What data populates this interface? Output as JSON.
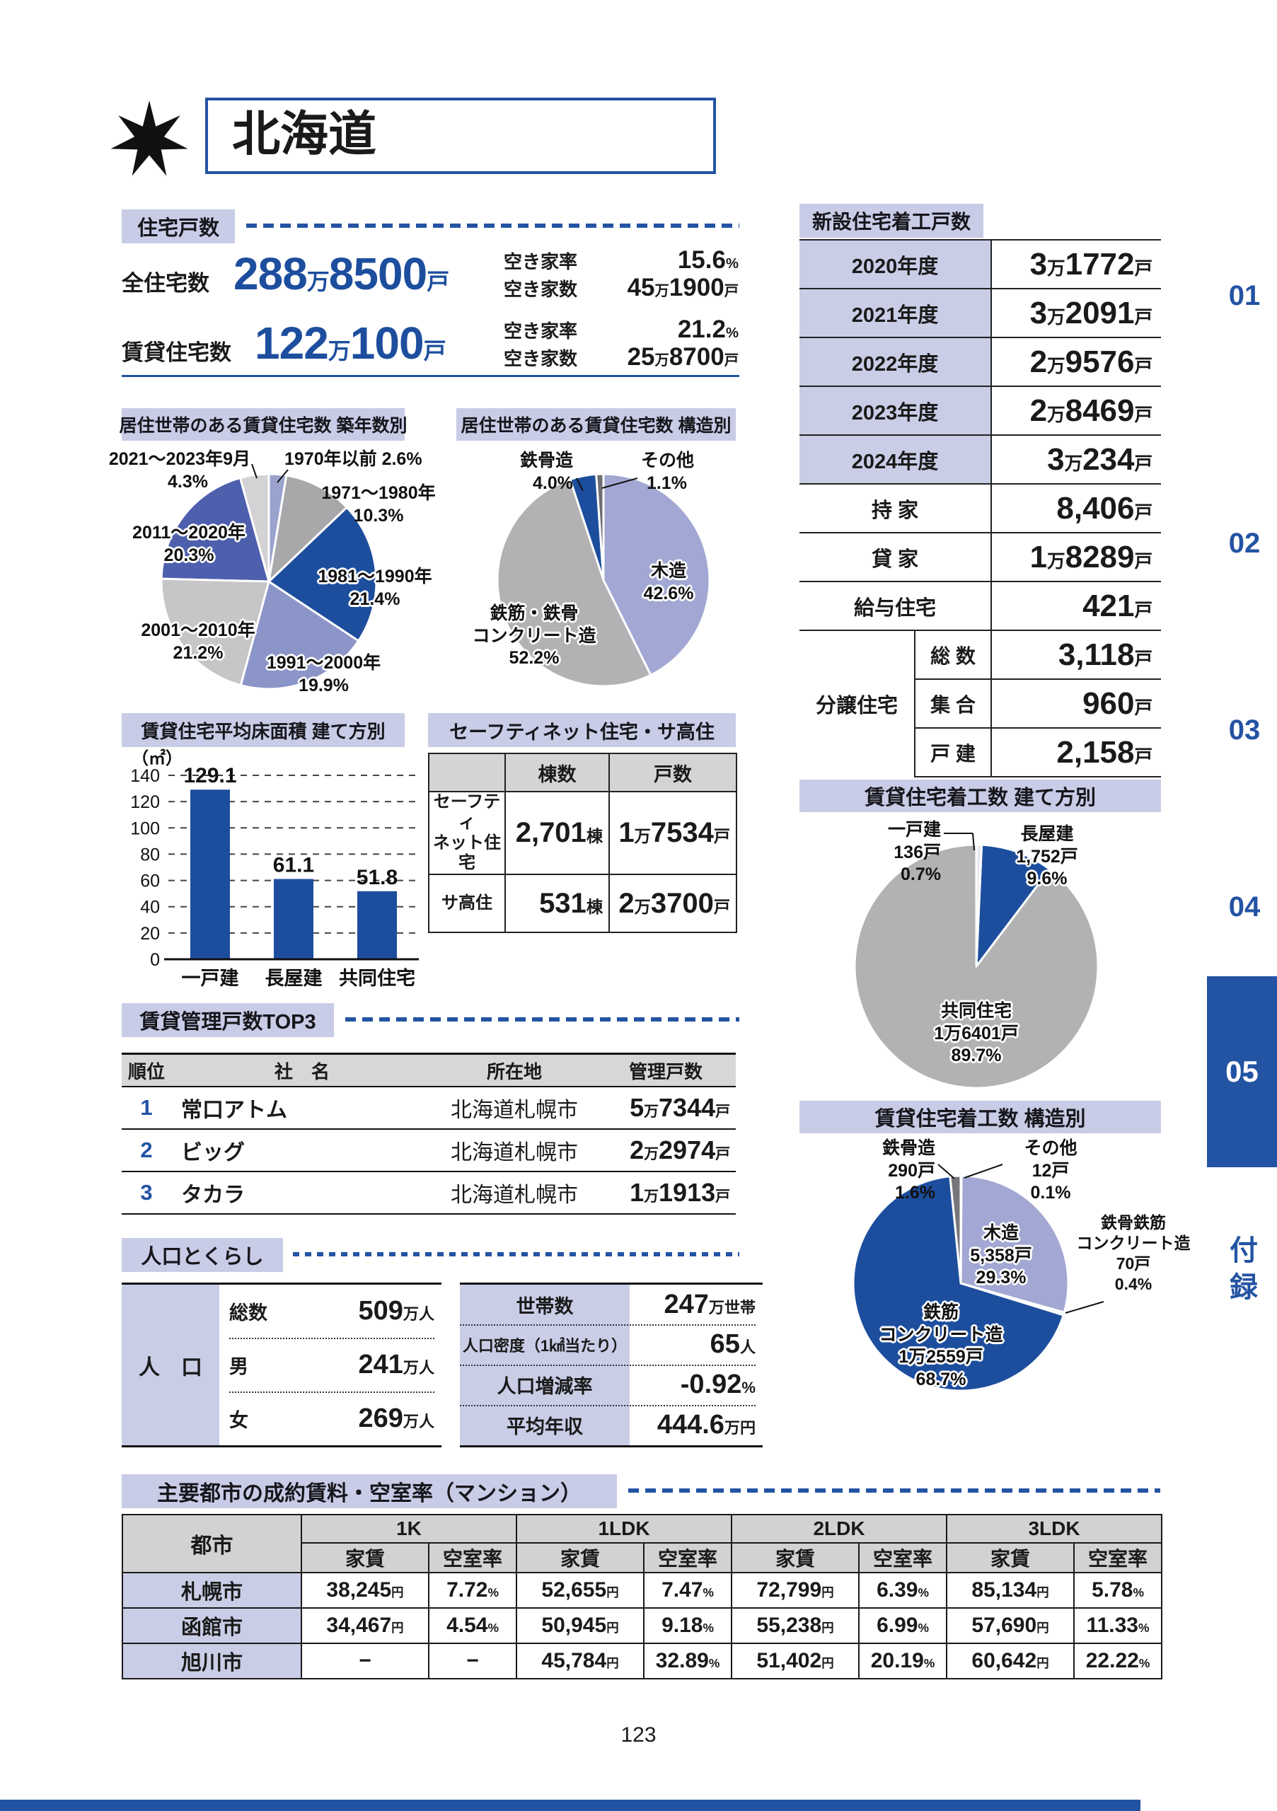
{
  "page": {
    "title": "北海道",
    "page_number": "123"
  },
  "sidebar": {
    "items": [
      "01",
      "02",
      "03",
      "04",
      "05"
    ],
    "appendix": "付録"
  },
  "housing_stock": {
    "section_title": "住宅戸数",
    "rows": [
      {
        "label": "全住宅数",
        "value": "288万8500戸",
        "vacancy_rate_label": "空き家率",
        "vacancy_rate": "15.6%",
        "vacancy_count_label": "空き家数",
        "vacancy_count": "45万1900戸"
      },
      {
        "label": "賃貸住宅数",
        "value": "122万100戸",
        "vacancy_rate_label": "空き家率",
        "vacancy_rate": "21.2%",
        "vacancy_count_label": "空き家数",
        "vacancy_count": "25万8700戸"
      }
    ]
  },
  "new_starts": {
    "section_title": "新設住宅着工戸数",
    "rows": [
      {
        "label": "2020年度",
        "value": "3万1772戸"
      },
      {
        "label": "2021年度",
        "value": "3万2091戸"
      },
      {
        "label": "2022年度",
        "value": "2万9576戸"
      },
      {
        "label": "2023年度",
        "value": "2万8469戸"
      },
      {
        "label": "2024年度",
        "value": "3万234戸"
      },
      {
        "label": "持 家",
        "value": "8,406戸"
      },
      {
        "label": "貸 家",
        "value": "1万8289戸"
      },
      {
        "label": "給与住宅",
        "value": "421戸"
      }
    ],
    "group": {
      "label": "分譲住宅",
      "rows": [
        {
          "label": "総 数",
          "value": "3,118戸"
        },
        {
          "label": "集 合",
          "value": "960戸"
        },
        {
          "label": "戸 建",
          "value": "2,158戸"
        }
      ]
    }
  },
  "safety_net": {
    "section_title": "セーフティネット住宅・サ高住",
    "col_headers": [
      "棟数",
      "戸数"
    ],
    "rows": [
      {
        "label": "セーフティ\nネット住宅",
        "buildings": "2,701棟",
        "units": "1万7534戸"
      },
      {
        "label": "サ高住",
        "buildings": "531棟",
        "units": "2万3700戸"
      }
    ]
  },
  "top3": {
    "section_title": "賃貸管理戸数TOP3",
    "headers": [
      "順位",
      "社　名",
      "所在地",
      "管理戸数"
    ],
    "rows": [
      {
        "rank": "1",
        "company": "常口アトム",
        "location": "北海道札幌市",
        "units": "5万7344戸"
      },
      {
        "rank": "2",
        "company": "ビッグ",
        "location": "北海道札幌市",
        "units": "2万2974戸"
      },
      {
        "rank": "3",
        "company": "タカラ",
        "location": "北海道札幌市",
        "units": "1万1913戸"
      }
    ]
  },
  "population": {
    "section_title": "人口とくらし",
    "left": {
      "header": "人　口",
      "rows": [
        {
          "label": "総数",
          "value": "509万人"
        },
        {
          "label": "男",
          "value": "241万人"
        },
        {
          "label": "女",
          "value": "269万人"
        }
      ]
    },
    "right": {
      "rows": [
        {
          "label": "世帯数",
          "value": "247万世帯"
        },
        {
          "label": "人口密度（1㎢当たり）",
          "value": "65人"
        },
        {
          "label": "人口増減率",
          "value": "-0.92%"
        },
        {
          "label": "平均年収",
          "value": "444.6万円"
        }
      ]
    }
  },
  "rent_table": {
    "section_title": "主要都市の成約賃料・空室率（マンション）",
    "city_header": "都市",
    "groups": [
      "1K",
      "1LDK",
      "2LDK",
      "3LDK"
    ],
    "sub_headers": [
      "家賃",
      "空室率"
    ],
    "rows": [
      {
        "city": "札幌市",
        "cells": [
          "38,245円",
          "7.72%",
          "52,655円",
          "7.47%",
          "72,799円",
          "6.39%",
          "85,134円",
          "5.78%"
        ]
      },
      {
        "city": "函館市",
        "cells": [
          "34,467円",
          "4.54%",
          "50,945円",
          "9.18%",
          "55,238円",
          "6.99%",
          "57,690円",
          "11.33%"
        ]
      },
      {
        "city": "旭川市",
        "cells": [
          "−",
          "−",
          "45,784円",
          "32.89%",
          "51,402円",
          "20.19%",
          "60,642円",
          "22.22%"
        ]
      }
    ]
  },
  "chart_data": [
    {
      "type": "pie",
      "title": "居住世帯のある賃貸住宅数 築年数別",
      "slices": [
        {
          "label": "1970年以前",
          "pct": 2.6,
          "pct_label": "2.6%",
          "color": "#9aa2ce"
        },
        {
          "label": "1971～1980年",
          "pct": 10.3,
          "pct_label": "10.3%",
          "color": "#a8a8ab"
        },
        {
          "label": "1981～1990年",
          "pct": 21.4,
          "pct_label": "21.4%",
          "color": "#1d4e9e"
        },
        {
          "label": "1991～2000年",
          "pct": 19.9,
          "pct_label": "19.9%",
          "color": "#8c95c8"
        },
        {
          "label": "2001～2010年",
          "pct": 21.2,
          "pct_label": "21.2%",
          "color": "#c6c6c9"
        },
        {
          "label": "2011～2020年",
          "pct": 20.3,
          "pct_label": "20.3%",
          "color": "#4d5fad"
        },
        {
          "label": "2021～2023年9月",
          "pct": 4.3,
          "pct_label": "4.3%",
          "color": "#d3d3d6"
        }
      ]
    },
    {
      "type": "pie",
      "title": "居住世帯のある賃貸住宅数 構造別",
      "slices": [
        {
          "label": "木造",
          "pct": 42.6,
          "pct_label": "42.6%",
          "color": "#a2a8d3"
        },
        {
          "label": "鉄筋・鉄骨コンクリート造",
          "label_lines": [
            "鉄筋・鉄骨",
            "コンクリート造"
          ],
          "pct": 52.2,
          "pct_label": "52.2%",
          "color": "#b2b2b5"
        },
        {
          "label": "鉄骨造",
          "pct": 4.0,
          "pct_label": "4.0%",
          "color": "#1d4e9e"
        },
        {
          "label": "その他",
          "pct": 1.1,
          "pct_label": "1.1%",
          "color": "#6e6e72"
        }
      ]
    },
    {
      "type": "bar",
      "title": "賃貸住宅平均床面積 建て方別",
      "unit_label": "（㎡）",
      "categories": [
        "一戸建",
        "長屋建",
        "共同住宅"
      ],
      "values": [
        129.1,
        61.1,
        51.8
      ],
      "ylim": [
        0,
        140
      ],
      "ticks": [
        0,
        20,
        40,
        60,
        80,
        100,
        120,
        140
      ],
      "bar_color": "#1d4e9e"
    },
    {
      "type": "pie",
      "title": "賃貸住宅着工数 建て方別",
      "slices": [
        {
          "label": "一戸建",
          "count": "136戸",
          "pct": 0.7,
          "pct_label": "0.7%",
          "color": "#e9e9ed"
        },
        {
          "label": "長屋建",
          "count": "1,752戸",
          "pct": 9.6,
          "pct_label": "9.6%",
          "color": "#1d4e9e"
        },
        {
          "label": "共同住宅",
          "count": "1万6401戸",
          "pct": 89.7,
          "pct_label": "89.7%",
          "color": "#b2b2b5"
        }
      ]
    },
    {
      "type": "pie",
      "title": "賃貸住宅着工数 構造別",
      "slices": [
        {
          "label": "その他",
          "count": "12戸",
          "pct": 0.1,
          "pct_label": "0.1%",
          "color": "#d3d3d6"
        },
        {
          "label": "木造",
          "count": "5,358戸",
          "pct": 29.3,
          "pct_label": "29.3%",
          "color": "#a2a8d3"
        },
        {
          "label": "鉄骨鉄筋コンクリート造",
          "label_lines": [
            "鉄骨鉄筋",
            "コンクリート造"
          ],
          "count": "70戸",
          "pct": 0.4,
          "pct_label": "0.4%",
          "color": "#e9e9ed"
        },
        {
          "label": "鉄筋コンクリート造",
          "label_lines": [
            "鉄筋",
            "コンクリート造"
          ],
          "count": "1万2559戸",
          "pct": 68.7,
          "pct_label": "68.7%",
          "color": "#1d4e9e"
        },
        {
          "label": "鉄骨造",
          "count": "290戸",
          "pct": 1.6,
          "pct_label": "1.6%",
          "color": "#77777b"
        }
      ]
    }
  ]
}
